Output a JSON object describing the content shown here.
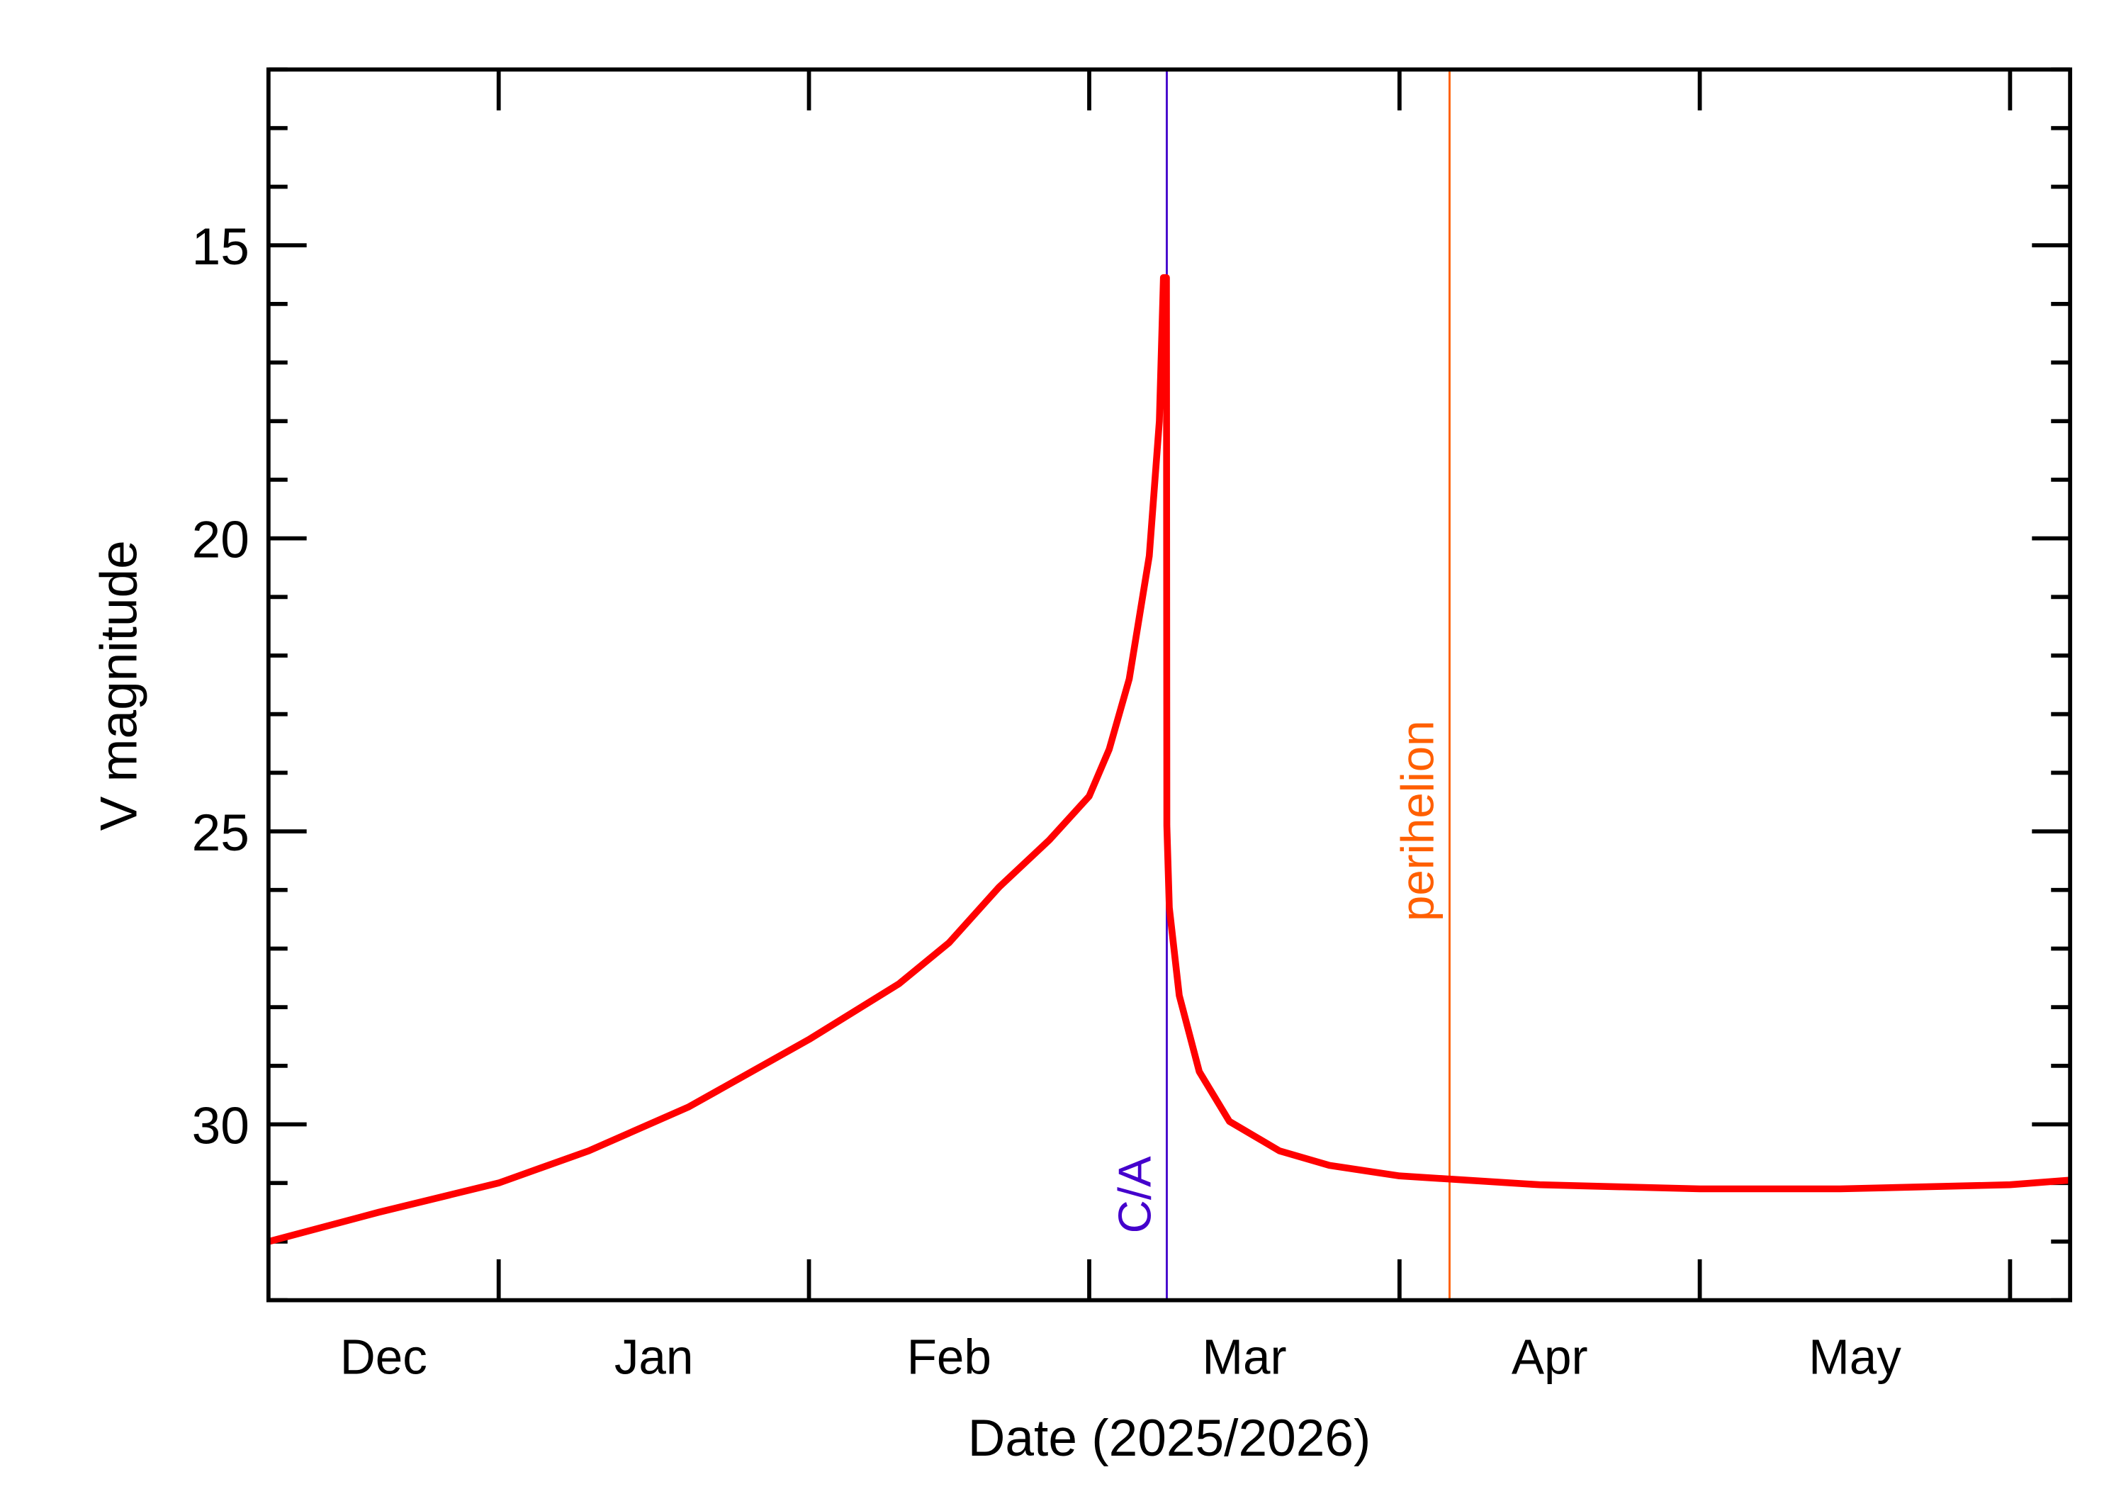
{
  "chart_data": {
    "type": "line",
    "title": "",
    "xlabel": "Date (2025/2026)",
    "ylabel": "V magnitude",
    "xlim": [
      "2025-12-09",
      "2026-06-07"
    ],
    "ylim": [
      12,
      33
    ],
    "y_inverted": true,
    "y_major_ticks": [
      15,
      20,
      25,
      30
    ],
    "y_tick_labels": [
      "15",
      "20",
      "25",
      "30"
    ],
    "y_minor_step": 1,
    "x_month_boundaries": [
      "2026-01-01",
      "2026-02-01",
      "2026-03-01",
      "2026-04-01",
      "2026-05-01",
      "2026-06-01"
    ],
    "x_month_labels": [
      {
        "label": "Dec",
        "month": "2025-12"
      },
      {
        "label": "Jan",
        "month": "2026-01"
      },
      {
        "label": "Feb",
        "month": "2026-02"
      },
      {
        "label": "Mar",
        "month": "2026-03"
      },
      {
        "label": "Apr",
        "month": "2026-04"
      },
      {
        "label": "May",
        "month": "2026-05"
      }
    ],
    "grid": false,
    "series": [
      {
        "color": "#ff0000",
        "points": [
          [
            "2025-12-09T00:00",
            32.0
          ],
          [
            "2025-12-20T00:00",
            31.5
          ],
          [
            "2026-01-01T00:00",
            31.0
          ],
          [
            "2026-01-10T00:00",
            30.45
          ],
          [
            "2026-01-20T00:00",
            29.7
          ],
          [
            "2026-02-01T00:00",
            28.55
          ],
          [
            "2026-02-10T00:00",
            27.6
          ],
          [
            "2026-02-15T00:00",
            26.9
          ],
          [
            "2026-02-20T00:00",
            25.95
          ],
          [
            "2026-02-25T00:00",
            25.15
          ],
          [
            "2026-03-01T00:00",
            24.4
          ],
          [
            "2026-03-03T00:00",
            23.6
          ],
          [
            "2026-03-05T00:00",
            22.4
          ],
          [
            "2026-03-07T00:00",
            20.3
          ],
          [
            "2026-03-08T00:00",
            18.0
          ],
          [
            "2026-03-08T10:00",
            15.55
          ],
          [
            "2026-03-08T17:00",
            15.55
          ],
          [
            "2026-03-08T18:00",
            24.9
          ],
          [
            "2026-03-09T00:00",
            26.3
          ],
          [
            "2026-03-10T00:00",
            27.8
          ],
          [
            "2026-03-12T00:00",
            29.1
          ],
          [
            "2026-03-15T00:00",
            29.95
          ],
          [
            "2026-03-20T00:00",
            30.45
          ],
          [
            "2026-03-25T00:00",
            30.7
          ],
          [
            "2026-04-01T00:00",
            30.88
          ],
          [
            "2026-04-15T00:00",
            31.03
          ],
          [
            "2026-05-01T00:00",
            31.1
          ],
          [
            "2026-05-15T00:00",
            31.1
          ],
          [
            "2026-06-01T00:00",
            31.03
          ],
          [
            "2026-06-07T00:00",
            30.95
          ]
        ]
      }
    ],
    "markers": [
      {
        "label": "C/A",
        "date": "2026-03-08T18:00",
        "color": "#4400cc"
      },
      {
        "label": "perihelion",
        "date": "2026-04-06T00:00",
        "color": "#ff5f00"
      }
    ]
  }
}
